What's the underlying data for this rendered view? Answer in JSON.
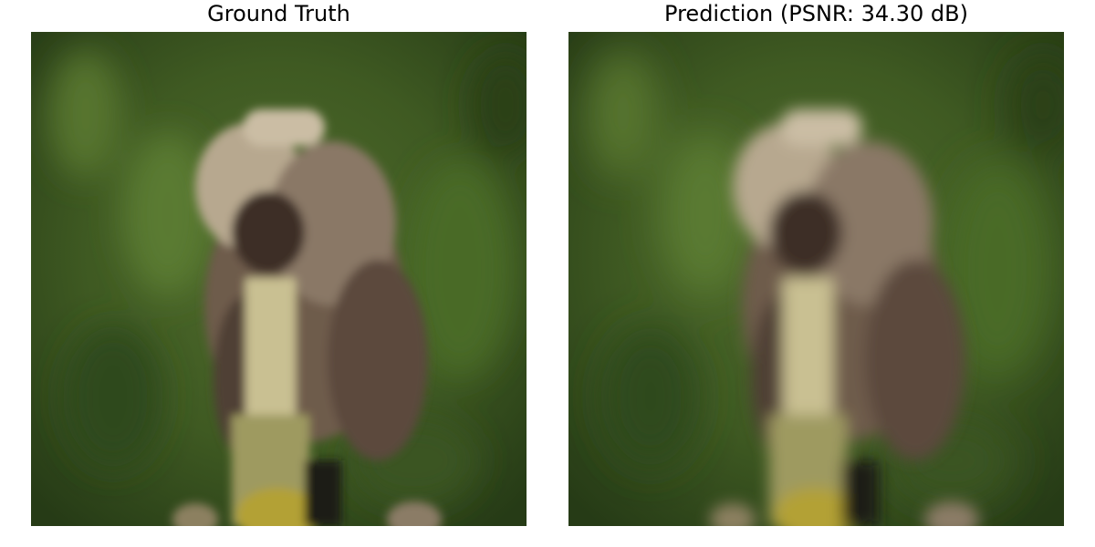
{
  "panels": [
    {
      "title": "Ground Truth",
      "image": "porcupine-on-branch-photo",
      "rendering": "pixelated"
    },
    {
      "title": "Prediction (PSNR: 34.30 dB)",
      "image": "porcupine-on-branch-photo",
      "rendering": "smooth"
    }
  ],
  "colors": {
    "background_green": "#3f5a22",
    "dark_green": "#263b16",
    "fur_brown": "#6e5c4c",
    "fur_light": "#c8b9a2",
    "branch_beige": "#c9c092",
    "lichen_yellow": "#b3a135"
  }
}
